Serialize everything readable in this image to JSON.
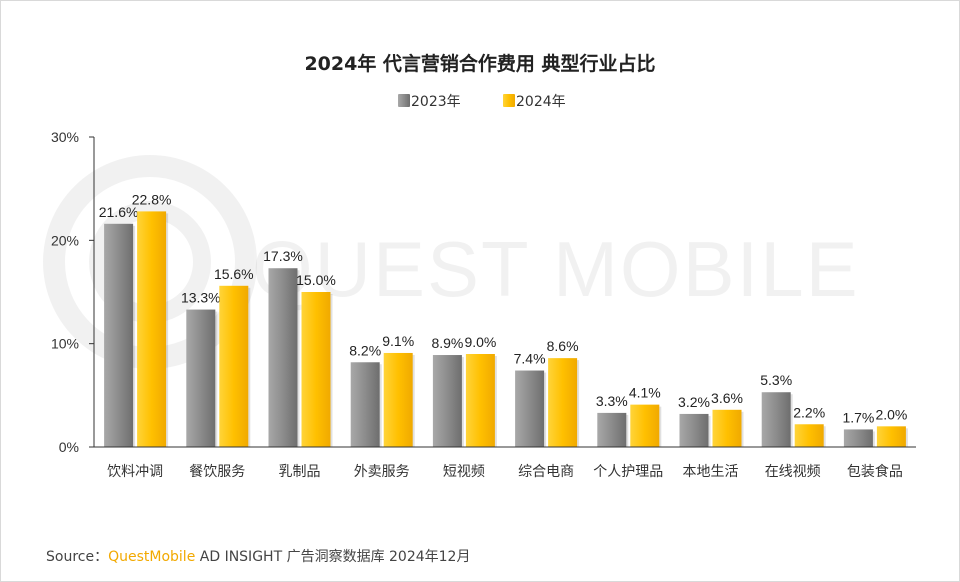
{
  "chart_data": {
    "type": "bar",
    "title": "2024年 代言营销合作费用 典型行业占比",
    "categories": [
      "饮料冲调",
      "餐饮服务",
      "乳制品",
      "外卖服务",
      "短视频",
      "综合电商",
      "个人护理品",
      "本地生活",
      "在线视频",
      "包装食品"
    ],
    "series": [
      {
        "name": "2023年",
        "values": [
          21.6,
          13.3,
          17.3,
          8.2,
          8.9,
          7.4,
          3.3,
          3.2,
          5.3,
          1.7
        ],
        "color": "#8c8c8c"
      },
      {
        "name": "2024年",
        "values": [
          22.8,
          15.6,
          15.0,
          9.1,
          9.0,
          8.6,
          4.1,
          3.6,
          2.2,
          2.0
        ],
        "color": "#ffc000"
      }
    ],
    "ylim": [
      0,
      30
    ],
    "yticks": [
      0,
      10,
      20,
      30
    ],
    "tick_format": "%",
    "value_format": "%",
    "legend": "top-center",
    "grid": false
  },
  "watermark": "QUEST MOBILE",
  "source": {
    "label": "Source：",
    "brand": "QuestMobile",
    "rest": " AD INSIGHT 广告洞察数据库 2024年12月"
  }
}
